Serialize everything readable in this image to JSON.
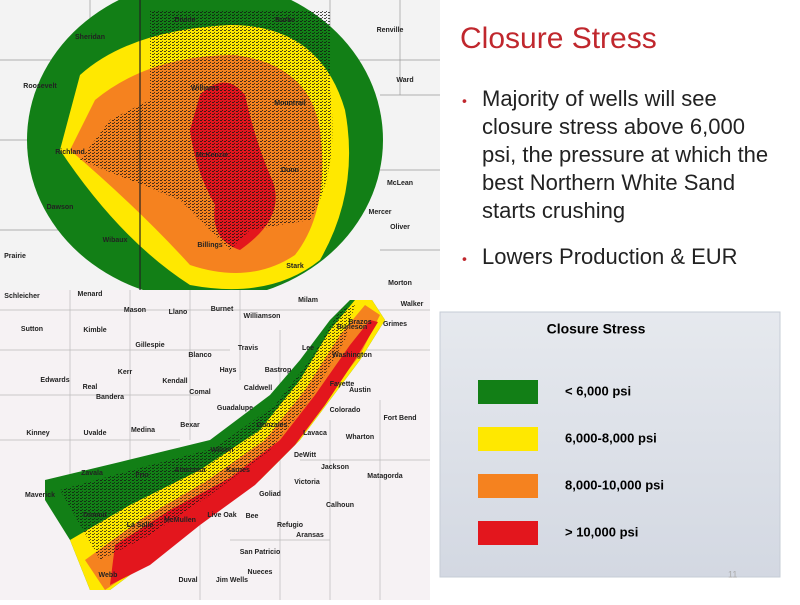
{
  "title": "Closure Stress",
  "bullets": [
    "Majority of wells will see closure stress above 6,000 psi, the pressure at which the best Northern White Sand starts crushing",
    "Lowers Production & EUR"
  ],
  "legend": {
    "title": "Closure Stress",
    "items": [
      {
        "label": "< 6,000 psi",
        "color": "#127f16"
      },
      {
        "label": "6,000-8,000 psi",
        "color": "#ffe800"
      },
      {
        "label": "8,000-10,000 psi",
        "color": "#f5821f"
      },
      {
        "label": "> 10,000 psi",
        "color": "#e3161d"
      }
    ]
  },
  "bakken_labels": [
    "Divide",
    "Burke",
    "Renville",
    "Sheridan",
    "Ward",
    "Roosevelt",
    "Williams",
    "Mountrail",
    "Richland",
    "McKenzie",
    "Dunn",
    "McLean",
    "Mercer",
    "Dawson",
    "Oliver",
    "Wibaux",
    "Billings",
    "Stark",
    "Prairie",
    "Morton"
  ],
  "eagle_ford_labels": [
    "Schleicher",
    "Menard",
    "Mason",
    "Llano",
    "Burnet",
    "Williamson",
    "Milam",
    "Walker",
    "Sutton",
    "Kimble",
    "Gillespie",
    "Blanco",
    "Travis",
    "Lee",
    "Burleson",
    "Grimes",
    "Edwards",
    "Real",
    "Kerr",
    "Kendall",
    "Hays",
    "Bastrop",
    "Washington",
    "Bandera",
    "Comal",
    "Caldwell",
    "Fayette",
    "Austin",
    "Guadalupe",
    "Colorado",
    "Fort Bend",
    "Kinney",
    "Uvalde",
    "Medina",
    "Bexar",
    "Wilson",
    "Gonzales",
    "Lavaca",
    "Wharton",
    "DeWitt",
    "Zavala",
    "Frio",
    "Atascosa",
    "Karnes",
    "Jackson",
    "Matagorda",
    "Maverick",
    "Victoria",
    "Goliad",
    "Calhoun",
    "Dimmit",
    "La Salle",
    "McMullen",
    "Live Oak",
    "Bee",
    "Refugio",
    "Aransas",
    "Webb",
    "Duval",
    "Jim Wells",
    "San Patricio",
    "Nueces",
    "Brazos"
  ],
  "page_number": "11"
}
